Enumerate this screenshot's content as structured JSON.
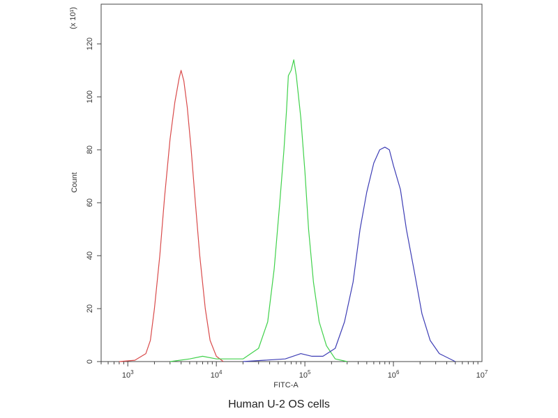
{
  "chart_data": {
    "type": "line",
    "caption": "Human U-2 OS cells",
    "xlabel": "FITC-A",
    "ylabel": "Count",
    "y_multiplier_label": "(x 10¹)",
    "x_scale": "log",
    "xlim": [
      500,
      10000000
    ],
    "ylim": [
      0,
      135
    ],
    "grid": false,
    "x_ticks": [
      {
        "value": 1000,
        "base": "10",
        "exp": "3"
      },
      {
        "value": 10000,
        "base": "10",
        "exp": "4"
      },
      {
        "value": 100000,
        "base": "10",
        "exp": "5"
      },
      {
        "value": 1000000,
        "base": "10",
        "exp": "6"
      },
      {
        "value": 10000000,
        "base": "10",
        "exp": "7"
      }
    ],
    "y_ticks": [
      0,
      20,
      40,
      60,
      80,
      100,
      120
    ],
    "series": [
      {
        "color": "#d94a4a",
        "points": [
          [
            800,
            0
          ],
          [
            1200,
            0.5
          ],
          [
            1600,
            3
          ],
          [
            1800,
            8
          ],
          [
            2000,
            20
          ],
          [
            2300,
            40
          ],
          [
            2600,
            62
          ],
          [
            3000,
            84
          ],
          [
            3400,
            98
          ],
          [
            3800,
            107
          ],
          [
            4000,
            110
          ],
          [
            4300,
            106
          ],
          [
            4700,
            96
          ],
          [
            5200,
            80
          ],
          [
            5800,
            60
          ],
          [
            6500,
            40
          ],
          [
            7500,
            20
          ],
          [
            8500,
            8
          ],
          [
            10000,
            2
          ],
          [
            12000,
            0
          ]
        ]
      },
      {
        "color": "#3fd14a",
        "points": [
          [
            3000,
            0
          ],
          [
            5000,
            1
          ],
          [
            7000,
            2
          ],
          [
            10000,
            1
          ],
          [
            20000,
            1
          ],
          [
            30000,
            5
          ],
          [
            38000,
            15
          ],
          [
            45000,
            35
          ],
          [
            52000,
            60
          ],
          [
            58000,
            80
          ],
          [
            62000,
            95
          ],
          [
            65000,
            108
          ],
          [
            70000,
            110
          ],
          [
            75000,
            114
          ],
          [
            80000,
            108
          ],
          [
            90000,
            92
          ],
          [
            100000,
            72
          ],
          [
            110000,
            50
          ],
          [
            125000,
            30
          ],
          [
            145000,
            15
          ],
          [
            175000,
            6
          ],
          [
            220000,
            1
          ],
          [
            300000,
            0
          ]
        ]
      },
      {
        "color": "#3d3db5",
        "points": [
          [
            20000,
            0
          ],
          [
            60000,
            1
          ],
          [
            90000,
            3
          ],
          [
            120000,
            2
          ],
          [
            160000,
            2
          ],
          [
            220000,
            5
          ],
          [
            280000,
            15
          ],
          [
            350000,
            30
          ],
          [
            420000,
            50
          ],
          [
            500000,
            64
          ],
          [
            600000,
            75
          ],
          [
            700000,
            80
          ],
          [
            800000,
            81
          ],
          [
            900000,
            80
          ],
          [
            1000000,
            74
          ],
          [
            1200000,
            65
          ],
          [
            1400000,
            50
          ],
          [
            1700000,
            35
          ],
          [
            2100000,
            18
          ],
          [
            2600000,
            8
          ],
          [
            3300000,
            3
          ],
          [
            5000000,
            0
          ]
        ]
      }
    ]
  }
}
